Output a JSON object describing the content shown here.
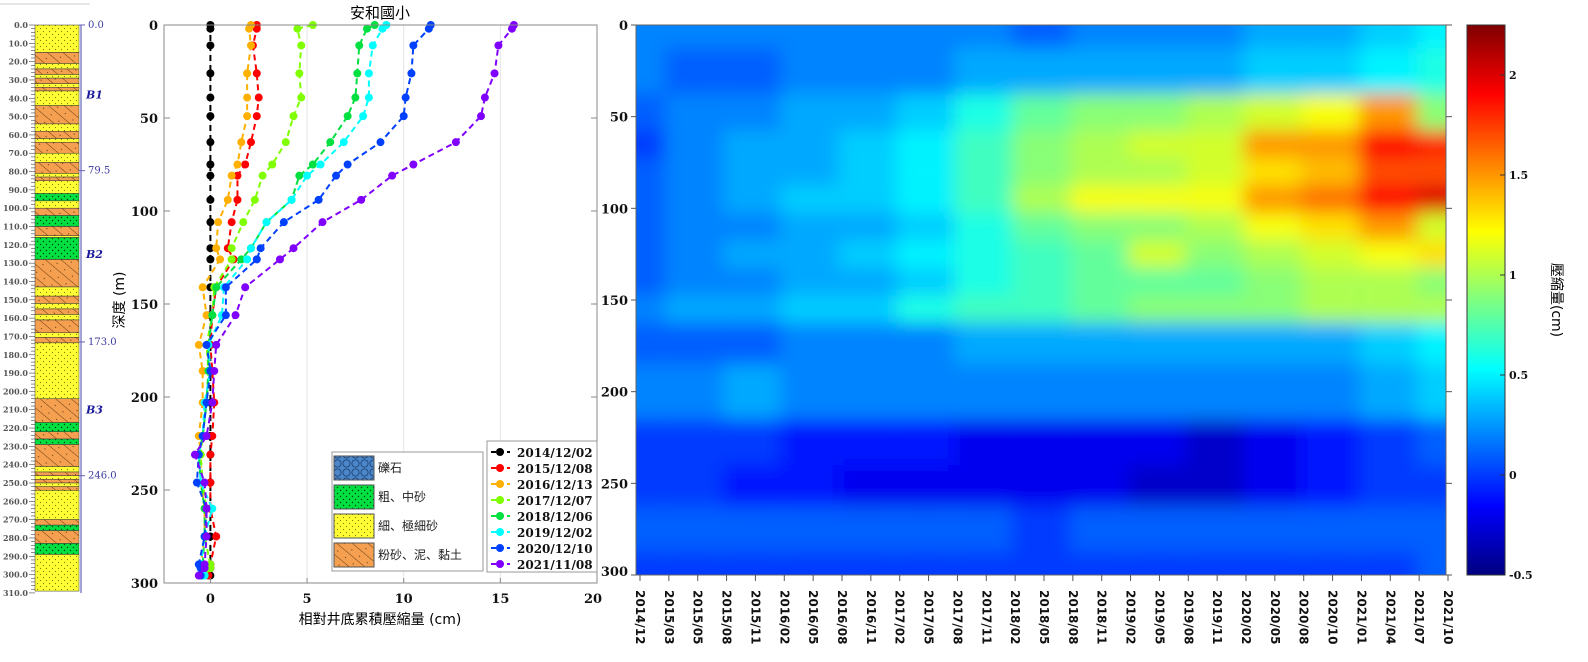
{
  "column": {
    "depth_ticks": [
      "0.0",
      "10.0",
      "20.0",
      "30.0",
      "40.0",
      "50.0",
      "60.0",
      "70.0",
      "80.0",
      "90.0",
      "100.0",
      "110.0",
      "120.0",
      "130.0",
      "140.0",
      "150.0",
      "160.0",
      "170.0",
      "180.0",
      "190.0",
      "200.0",
      "210.0",
      "220.0",
      "230.0",
      "240.0",
      "250.0",
      "260.0",
      "270.0",
      "280.0",
      "290.0",
      "300.0",
      "310.0"
    ],
    "boundaries": [
      {
        "depth": 0,
        "label": "0.0"
      },
      {
        "depth": 79.5,
        "label": "79.5"
      },
      {
        "depth": 173,
        "label": "173.0"
      },
      {
        "depth": 246,
        "label": "246.0"
      }
    ],
    "units": [
      {
        "label": "B1",
        "depth": 38
      },
      {
        "label": "B2",
        "depth": 125
      },
      {
        "label": "B3",
        "depth": 210
      }
    ],
    "layers": [
      [
        0,
        15,
        "fine"
      ],
      [
        15,
        21,
        "silt"
      ],
      [
        21,
        24,
        "fine"
      ],
      [
        24,
        27,
        "silt"
      ],
      [
        27,
        29,
        "fine"
      ],
      [
        29,
        32,
        "silt"
      ],
      [
        32,
        34,
        "fine"
      ],
      [
        34,
        36,
        "silt"
      ],
      [
        36,
        44,
        "fine"
      ],
      [
        44,
        54,
        "silt"
      ],
      [
        54,
        58,
        "fine"
      ],
      [
        58,
        62,
        "silt"
      ],
      [
        62,
        64,
        "fine"
      ],
      [
        64,
        70,
        "silt"
      ],
      [
        70,
        75,
        "fine"
      ],
      [
        75,
        81,
        "silt"
      ],
      [
        81,
        83,
        "fine"
      ],
      [
        83,
        85,
        "silt"
      ],
      [
        85,
        92,
        "fine"
      ],
      [
        92,
        96,
        "coarse"
      ],
      [
        96,
        100,
        "fine"
      ],
      [
        100,
        104,
        "silt"
      ],
      [
        104,
        110,
        "coarse"
      ],
      [
        110,
        115,
        "silt"
      ],
      [
        115,
        116,
        "fine"
      ],
      [
        116,
        128,
        "coarse"
      ],
      [
        128,
        143,
        "silt"
      ],
      [
        143,
        148,
        "fine"
      ],
      [
        148,
        152,
        "silt"
      ],
      [
        152,
        155,
        "fine"
      ],
      [
        155,
        158,
        "silt"
      ],
      [
        158,
        161,
        "fine"
      ],
      [
        161,
        168,
        "silt"
      ],
      [
        168,
        170.5,
        "fine"
      ],
      [
        170.5,
        173.5,
        "silt"
      ],
      [
        173.5,
        204,
        "fine"
      ],
      [
        204,
        217,
        "silt"
      ],
      [
        217,
        222,
        "coarse"
      ],
      [
        222,
        226,
        "silt"
      ],
      [
        226,
        229,
        "coarse"
      ],
      [
        229,
        241,
        "silt"
      ],
      [
        241,
        244,
        "fine"
      ],
      [
        244,
        246,
        "silt"
      ],
      [
        246,
        248,
        "fine"
      ],
      [
        248,
        250,
        "silt"
      ],
      [
        250,
        252,
        "fine"
      ],
      [
        252,
        254,
        "silt"
      ],
      [
        254,
        270,
        "fine"
      ],
      [
        270,
        273,
        "silt"
      ],
      [
        273,
        276,
        "coarse"
      ],
      [
        276,
        283,
        "silt"
      ],
      [
        283,
        289,
        "coarse"
      ],
      [
        289,
        309,
        "fine"
      ]
    ]
  },
  "lithology_legend": [
    {
      "key": "gravel",
      "label": "礫石",
      "color": "#4a86c8"
    },
    {
      "key": "coarse",
      "label": "粗、中砂",
      "color": "#00e040"
    },
    {
      "key": "fine",
      "label": "細、極細砂",
      "color": "#ffff55"
    },
    {
      "key": "silt",
      "label": "粉砂、泥、黏土",
      "color": "#f4a050"
    }
  ],
  "chart_data": [
    {
      "type": "line",
      "title": "安和國小",
      "xlabel": "相對井底累積壓縮量 (cm)",
      "ylabel": "深度 (m)",
      "xlim": [
        -2.4,
        20
      ],
      "ylim": [
        0,
        300
      ],
      "y_inverted": true,
      "x_ticks": [
        "0",
        "5",
        "10",
        "15",
        "20"
      ],
      "y_ticks": [
        "0",
        "50",
        "100",
        "150",
        "200",
        "250",
        "300"
      ],
      "grid": "vertical",
      "legend_position": "bottom-right",
      "depth": [
        0,
        2,
        11,
        26,
        39,
        49,
        63,
        75,
        81,
        94,
        106,
        120,
        126,
        141,
        156,
        172,
        186,
        203,
        221,
        231,
        246,
        260,
        275,
        290,
        292,
        296
      ],
      "series": [
        {
          "name": "2014/12/02",
          "color": "#000000",
          "values": [
            0,
            0,
            0,
            0,
            0,
            0,
            0,
            0,
            0,
            0,
            0,
            0,
            0,
            0,
            0,
            0,
            0,
            0,
            0,
            0,
            0,
            0,
            0,
            0,
            0,
            0
          ]
        },
        {
          "name": "2015/12/08",
          "color": "#ff0000",
          "values": [
            2.4,
            2.4,
            2.2,
            2.4,
            2.5,
            2.4,
            2.1,
            1.8,
            1.4,
            1.4,
            1.1,
            0.9,
            1.2,
            0.3,
            0.1,
            0.0,
            0.1,
            0.2,
            0.1,
            0.0,
            0.0,
            0.0,
            0.3,
            0.0,
            0.0,
            -0.1
          ]
        },
        {
          "name": "2016/12/13",
          "color": "#ffb000",
          "values": [
            2.1,
            2.0,
            2.1,
            1.9,
            1.9,
            1.9,
            1.6,
            1.4,
            1.1,
            0.9,
            0.4,
            0.3,
            0.5,
            -0.4,
            -0.2,
            -0.6,
            -0.4,
            -0.4,
            -0.6,
            -0.5,
            -0.5,
            -0.3,
            -0.3,
            -0.5,
            -0.4,
            -0.4
          ]
        },
        {
          "name": "2017/12/07",
          "color": "#80ff00",
          "values": [
            5.3,
            4.5,
            4.7,
            4.6,
            4.7,
            4.3,
            3.9,
            3.2,
            2.7,
            2.3,
            1.7,
            1.1,
            1.1,
            0.2,
            0.1,
            -0.2,
            -0.1,
            -0.2,
            -0.4,
            -0.5,
            -0.4,
            -0.2,
            -0.3,
            0.0,
            0.0,
            -0.3
          ]
        },
        {
          "name": "2018/12/06",
          "color": "#00e040",
          "values": [
            8.5,
            8.1,
            7.7,
            7.6,
            7.5,
            7.1,
            6.2,
            5.3,
            4.6,
            4.2,
            2.9,
            2.1,
            1.6,
            0.3,
            0.1,
            -0.1,
            -0.1,
            -0.2,
            -0.4,
            -0.6,
            -0.5,
            -0.3,
            -0.3,
            -0.4,
            -0.4,
            -0.4
          ]
        },
        {
          "name": "2019/12/02",
          "color": "#00ffff",
          "values": [
            9.1,
            8.9,
            8.4,
            8.2,
            8.2,
            7.9,
            6.9,
            5.7,
            5.0,
            4.2,
            2.9,
            2.1,
            1.9,
            0.7,
            0.6,
            -0.1,
            0.0,
            -0.3,
            -0.4,
            -0.6,
            -0.5,
            0.1,
            -0.3,
            -0.5,
            -0.5,
            -0.3
          ]
        },
        {
          "name": "2020/12/10",
          "color": "#0040ff",
          "values": [
            11.4,
            11.3,
            10.5,
            10.4,
            10.1,
            10.0,
            8.8,
            7.1,
            6.5,
            5.6,
            3.8,
            2.6,
            2.4,
            0.8,
            0.8,
            -0.2,
            0.0,
            -0.2,
            -0.4,
            -0.6,
            -0.7,
            -0.2,
            -0.3,
            -0.6,
            -0.5,
            -0.5
          ]
        },
        {
          "name": "2021/11/08",
          "color": "#8000ff",
          "values": [
            15.7,
            15.6,
            14.9,
            14.7,
            14.2,
            14.0,
            12.7,
            10.5,
            9.4,
            7.8,
            5.8,
            4.3,
            3.6,
            1.8,
            1.3,
            0.3,
            0.2,
            0.1,
            -0.2,
            -0.8,
            -0.3,
            -0.2,
            -0.2,
            -0.3,
            -0.3,
            -0.6
          ]
        }
      ]
    },
    {
      "type": "heatmap",
      "colormap": "jet",
      "x_ticks": [
        "2014/12",
        "2015/03",
        "2015/05",
        "2015/08",
        "2015/11",
        "2016/02",
        "2016/05",
        "2016/08",
        "2016/11",
        "2017/02",
        "2017/05",
        "2017/08",
        "2017/11",
        "2018/02",
        "2018/05",
        "2018/08",
        "2018/11",
        "2019/02",
        "2019/05",
        "2019/08",
        "2019/11",
        "2020/02",
        "2020/05",
        "2020/08",
        "2020/10",
        "2021/01",
        "2021/04",
        "2021/07",
        "2021/10"
      ],
      "y_ticks": [
        "0",
        "50",
        "100",
        "150",
        "200",
        "250",
        "300"
      ],
      "ylim": [
        0,
        300
      ],
      "y_inverted": true,
      "colorbar_label": "壓縮量(cm)",
      "colorbar_ticks": [
        "2",
        "1.5",
        "1",
        "0.5",
        "0",
        "-0.5"
      ],
      "clim": [
        -0.5,
        2.25
      ],
      "x": [
        "2014/12",
        "2015/05",
        "2015/11",
        "2016/05",
        "2016/11",
        "2017/05",
        "2017/11",
        "2018/05",
        "2018/11",
        "2019/05",
        "2019/11",
        "2020/05",
        "2020/10",
        "2021/04",
        "2021/10"
      ],
      "depth": [
        0,
        25,
        50,
        65,
        80,
        95,
        110,
        125,
        140,
        155,
        170,
        200,
        230,
        250,
        275,
        300
      ],
      "values": [
        [
          0.2,
          0.2,
          0.2,
          0.2,
          0.2,
          0.2,
          0.2,
          0.1,
          0.2,
          0.2,
          0.2,
          0.3,
          0.3,
          0.4,
          0.5
        ],
        [
          0.2,
          0.1,
          0.1,
          0.2,
          0.2,
          0.2,
          0.3,
          0.3,
          0.3,
          0.3,
          0.3,
          0.4,
          0.4,
          0.5,
          0.6
        ],
        [
          0.1,
          0.2,
          0.2,
          0.3,
          0.3,
          0.4,
          0.6,
          0.8,
          0.9,
          0.9,
          1.0,
          1.1,
          1.2,
          1.5,
          0.9
        ],
        [
          0.0,
          0.2,
          0.3,
          0.3,
          0.4,
          0.5,
          0.7,
          0.9,
          1.0,
          1.1,
          1.1,
          1.5,
          1.5,
          1.9,
          1.8
        ],
        [
          0.1,
          0.2,
          0.3,
          0.3,
          0.4,
          0.5,
          0.7,
          0.9,
          1.0,
          1.0,
          1.1,
          1.3,
          1.4,
          1.7,
          1.7
        ],
        [
          0.1,
          0.2,
          0.3,
          0.4,
          0.4,
          0.5,
          0.7,
          1.0,
          1.2,
          1.2,
          1.2,
          1.5,
          1.6,
          1.9,
          2.0
        ],
        [
          0.1,
          0.2,
          0.2,
          0.3,
          0.3,
          0.4,
          0.6,
          0.8,
          0.9,
          0.9,
          1.0,
          1.2,
          1.3,
          1.5,
          1.1
        ],
        [
          0.1,
          0.2,
          0.3,
          0.3,
          0.4,
          0.5,
          0.6,
          0.7,
          0.8,
          1.1,
          0.9,
          1.0,
          1.1,
          1.2,
          1.3
        ],
        [
          0.1,
          0.2,
          0.2,
          0.3,
          0.3,
          0.4,
          0.6,
          0.7,
          0.8,
          0.8,
          0.8,
          0.9,
          1.0,
          1.0,
          0.9
        ],
        [
          0.2,
          0.3,
          0.3,
          0.4,
          0.4,
          0.6,
          0.7,
          0.7,
          0.8,
          0.9,
          0.9,
          0.9,
          1.0,
          1.0,
          1.0
        ],
        [
          0.1,
          0.1,
          0.1,
          0.2,
          0.2,
          0.2,
          0.3,
          0.3,
          0.3,
          0.3,
          0.3,
          0.3,
          0.3,
          0.4,
          0.5
        ],
        [
          0.2,
          0.2,
          0.3,
          0.2,
          0.2,
          0.2,
          0.2,
          0.2,
          0.2,
          0.2,
          0.2,
          0.2,
          0.2,
          0.3,
          0.4
        ],
        [
          0.0,
          0.0,
          0.0,
          -0.1,
          -0.1,
          -0.1,
          -0.2,
          -0.2,
          -0.2,
          -0.2,
          -0.3,
          -0.2,
          -0.1,
          0.0,
          0.1
        ],
        [
          0.0,
          0.0,
          -0.1,
          -0.1,
          -0.2,
          -0.2,
          -0.2,
          -0.2,
          -0.2,
          -0.3,
          -0.3,
          -0.2,
          -0.1,
          0.0,
          0.0
        ],
        [
          0.1,
          0.1,
          0.1,
          0.1,
          0.1,
          0.1,
          0.1,
          0.0,
          0.1,
          0.1,
          0.1,
          0.1,
          0.1,
          0.1,
          0.1
        ],
        [
          0.0,
          0.0,
          0.0,
          0.0,
          0.0,
          0.0,
          0.0,
          0.0,
          0.0,
          0.0,
          0.0,
          0.0,
          0.0,
          0.0,
          0.1
        ]
      ]
    }
  ]
}
